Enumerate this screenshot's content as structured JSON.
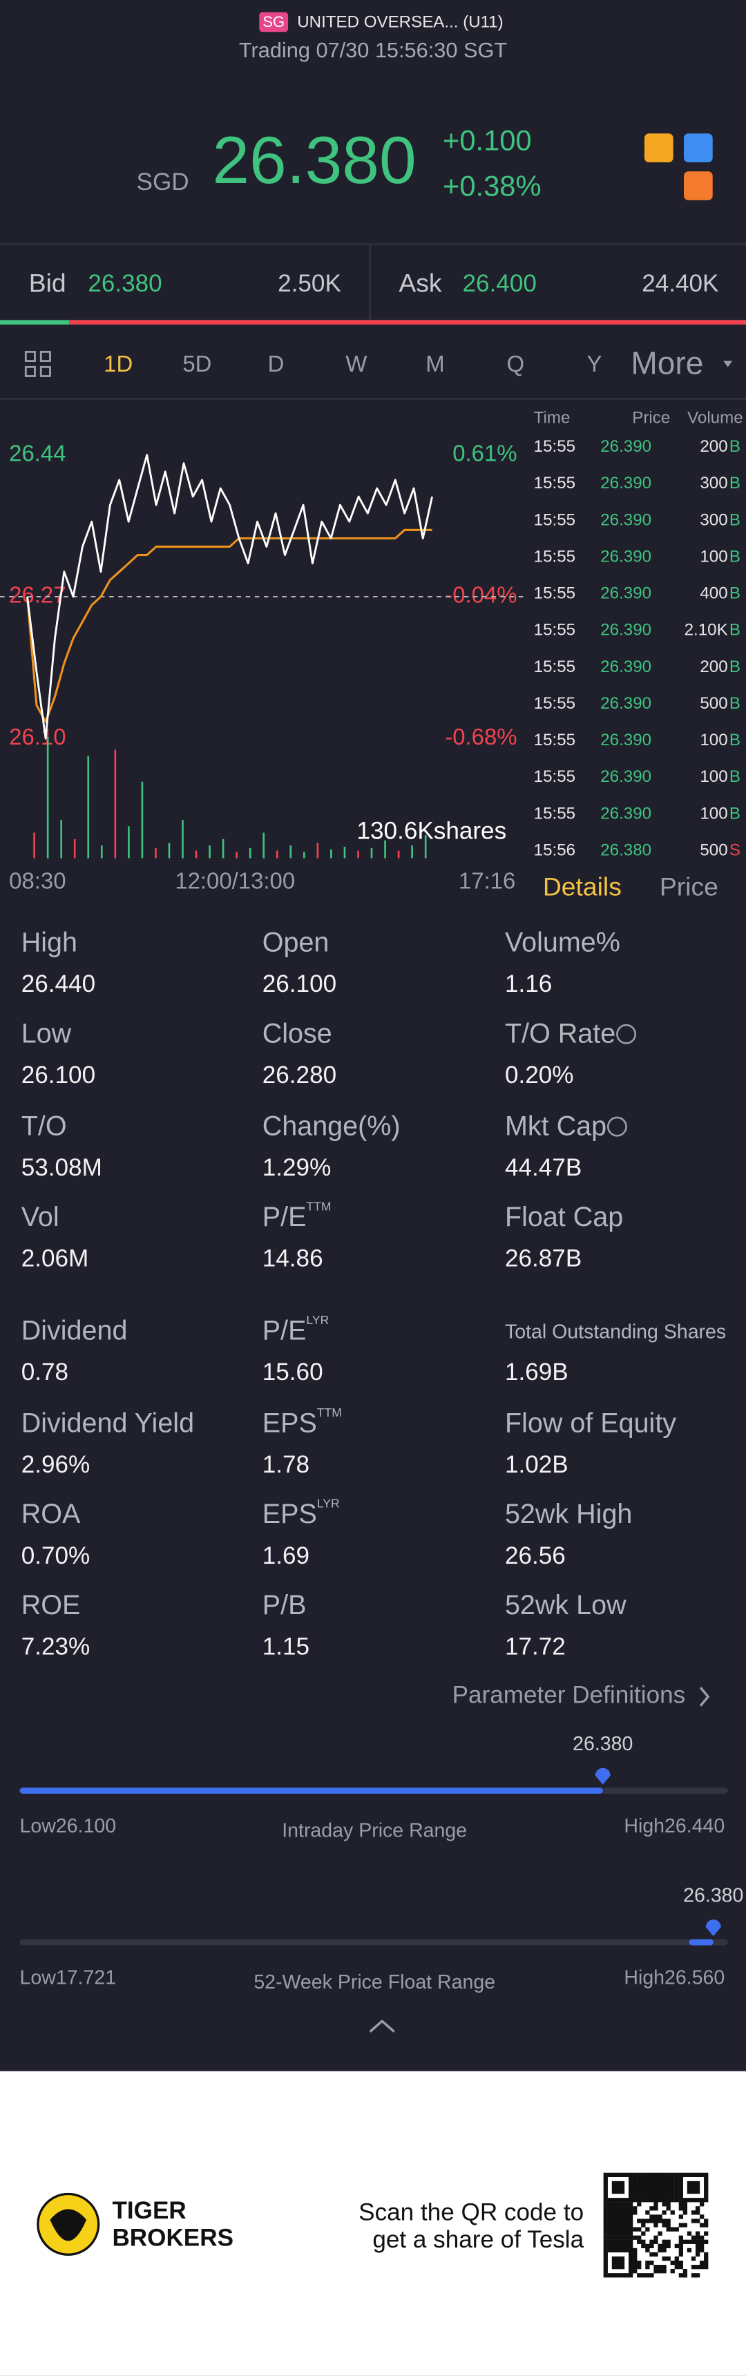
{
  "header": {
    "exchange_badge": "SG",
    "name": "UNITED OVERSEA... (U11)",
    "status": "Trading 07/30 15:56:30 SGT"
  },
  "quote": {
    "currency": "SGD",
    "price": "26.380",
    "change": "+0.100",
    "change_pct": "+0.38%"
  },
  "order_book": {
    "bid_label": "Bid",
    "bid_price": "26.380",
    "bid_size": {
      "value": 2500,
      "label": "2.50K"
    },
    "ask_label": "Ask",
    "ask_price": "26.400",
    "ask_size": {
      "value": 24400,
      "label": "24.40K"
    }
  },
  "tabs": [
    "1D",
    "5D",
    "D",
    "W",
    "M",
    "Q",
    "Y",
    "More"
  ],
  "intraday": {
    "ylim": [
      26.1,
      26.44
    ],
    "yticks": [
      {
        "value": 26.44,
        "label": "26.44"
      },
      {
        "value": 26.27,
        "label": "26.27"
      },
      {
        "value": 26.1,
        "label": "26.10"
      }
    ],
    "pct_labels": [
      "0.61%",
      "-0.04%",
      "-0.68%"
    ],
    "times": [
      "08:30",
      "12:00/13:00",
      "17:16"
    ],
    "volume_label": "130.6Kshares",
    "prices": [
      26.27,
      26.18,
      26.1,
      26.22,
      26.3,
      26.27,
      26.33,
      26.36,
      26.3,
      26.38,
      26.41,
      26.36,
      26.4,
      26.44,
      26.38,
      26.42,
      26.37,
      26.43,
      26.39,
      26.41,
      26.36,
      26.4,
      26.38,
      26.34,
      26.31,
      26.36,
      26.33,
      26.37,
      26.32,
      26.35,
      26.38,
      26.31,
      26.36,
      26.34,
      26.38,
      26.36,
      26.39,
      26.37,
      26.4,
      26.38,
      26.41,
      26.37,
      26.4,
      26.34,
      26.39
    ],
    "avg": [
      26.27,
      26.14,
      26.12,
      26.15,
      26.19,
      26.22,
      26.24,
      26.26,
      26.27,
      26.29,
      26.3,
      26.31,
      26.32,
      26.32,
      26.33,
      26.33,
      26.33,
      26.33,
      26.33,
      26.33,
      26.33,
      26.33,
      26.33,
      26.34,
      26.34,
      26.34,
      26.34,
      26.34,
      26.34,
      26.34,
      26.34,
      26.34,
      26.34,
      26.34,
      26.34,
      26.34,
      26.34,
      26.34,
      26.34,
      26.34,
      26.34,
      26.35,
      26.35,
      26.35,
      26.35
    ],
    "volumes": [
      20,
      95,
      30,
      15,
      80,
      10,
      85,
      25,
      60,
      8,
      12,
      30,
      6,
      10,
      15,
      5,
      8,
      20,
      6,
      10,
      5,
      12,
      7,
      9,
      6,
      8,
      14,
      6,
      10,
      18
    ]
  },
  "trades": {
    "headers": [
      "Time",
      "Price",
      "Volume"
    ],
    "rows": [
      [
        "15:55",
        "26.390",
        "200",
        "B"
      ],
      [
        "15:55",
        "26.390",
        "300",
        "B"
      ],
      [
        "15:55",
        "26.390",
        "300",
        "B"
      ],
      [
        "15:55",
        "26.390",
        "100",
        "B"
      ],
      [
        "15:55",
        "26.390",
        "400",
        "B"
      ],
      [
        "15:55",
        "26.390",
        "2.10K",
        "B"
      ],
      [
        "15:55",
        "26.390",
        "200",
        "B"
      ],
      [
        "15:55",
        "26.390",
        "500",
        "B"
      ],
      [
        "15:55",
        "26.390",
        "100",
        "B"
      ],
      [
        "15:55",
        "26.390",
        "100",
        "B"
      ],
      [
        "15:55",
        "26.390",
        "100",
        "B"
      ],
      [
        "15:56",
        "26.380",
        "500",
        "S"
      ]
    ]
  },
  "panel_tabs": [
    "Details",
    "Price"
  ],
  "stats": [
    [
      {
        "label": "High",
        "value": "26.440"
      },
      {
        "label": "Open",
        "value": "26.100"
      },
      {
        "label": "Volume%",
        "value": "1.16"
      }
    ],
    [
      {
        "label": "Low",
        "value": "26.100"
      },
      {
        "label": "Close",
        "value": "26.280"
      },
      {
        "label": "T/O Rate",
        "value": "0.20%"
      }
    ],
    [
      {
        "label": "T/O",
        "value": "53.08M"
      },
      {
        "label": "Change(%)",
        "value": "1.29%"
      },
      {
        "label": "Mkt Cap",
        "value": "44.47B"
      }
    ],
    [
      {
        "label": "Vol",
        "value": "2.06M"
      },
      {
        "label": "P/E",
        "sup": "TTM",
        "value": "14.86"
      },
      {
        "label": "Float Cap",
        "value": "26.87B"
      }
    ],
    [
      {
        "label": "Dividend",
        "value": "0.78"
      },
      {
        "label": "P/E",
        "sup": "LYR",
        "value": "15.60"
      },
      {
        "label": "Total Outstanding Shares",
        "value": "1.69B"
      }
    ],
    [
      {
        "label": "Dividend Yield",
        "value": "2.96%"
      },
      {
        "label": "EPS",
        "sup": "TTM",
        "value": "1.78"
      },
      {
        "label": "Flow of Equity",
        "value": "1.02B"
      }
    ],
    [
      {
        "label": "ROA",
        "value": "0.70%"
      },
      {
        "label": "EPS",
        "sup": "LYR",
        "value": "1.69"
      },
      {
        "label": "52wk High",
        "value": "26.56"
      }
    ],
    [
      {
        "label": "ROE",
        "value": "7.23%"
      },
      {
        "label": "P/B",
        "value": "1.15"
      },
      {
        "label": "52wk Low",
        "value": "17.72"
      }
    ]
  ],
  "parameter_link": "Parameter Definitions",
  "ranges": [
    {
      "title": "Intraday Price Range",
      "low_text": "Low",
      "high_text": "High",
      "low": {
        "value": 26.1,
        "label": "26.100"
      },
      "high": {
        "value": 26.44,
        "label": "26.440"
      },
      "current": {
        "value": 26.38,
        "label": "26.380"
      }
    },
    {
      "title": "52-Week Price Float Range",
      "low_text": "Low",
      "high_text": "High",
      "low": {
        "value": 17.721,
        "label": "17.721"
      },
      "high": {
        "value": 26.56,
        "label": "26.560"
      },
      "current": {
        "value": 26.38,
        "label": "26.380"
      }
    }
  ],
  "footer": {
    "brand": [
      "TIGER",
      "BROKERS"
    ],
    "cta": [
      "Scan the QR code to",
      "get a share of Tesla"
    ]
  }
}
